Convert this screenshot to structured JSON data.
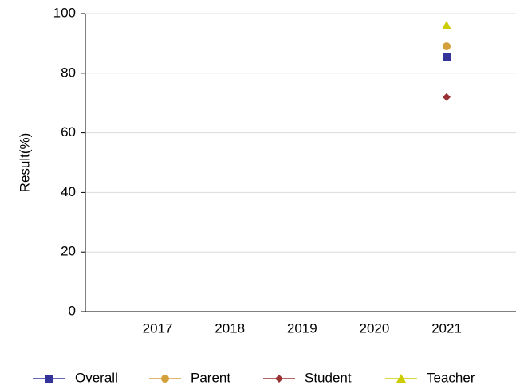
{
  "chart_data": {
    "type": "line",
    "y_label": "Result(%)",
    "categories": [
      "2017",
      "2018",
      "2019",
      "2020",
      "2021"
    ],
    "series": [
      {
        "name": "Overall",
        "color": "#333399",
        "marker": "square",
        "values": [
          null,
          null,
          null,
          null,
          85.5
        ]
      },
      {
        "name": "Parent",
        "color": "#d4a03c",
        "marker": "circle",
        "values": [
          null,
          null,
          null,
          null,
          89
        ]
      },
      {
        "name": "Student",
        "color": "#993333",
        "marker": "diamond",
        "values": [
          null,
          null,
          null,
          null,
          72
        ]
      },
      {
        "name": "Teacher",
        "color": "#cccc00",
        "marker": "triangle",
        "values": [
          null,
          null,
          null,
          null,
          96
        ]
      }
    ],
    "ylim": [
      0,
      100
    ],
    "yticks": [
      0,
      20,
      40,
      60,
      80,
      100
    ],
    "grid": true,
    "legend": "bottom"
  }
}
